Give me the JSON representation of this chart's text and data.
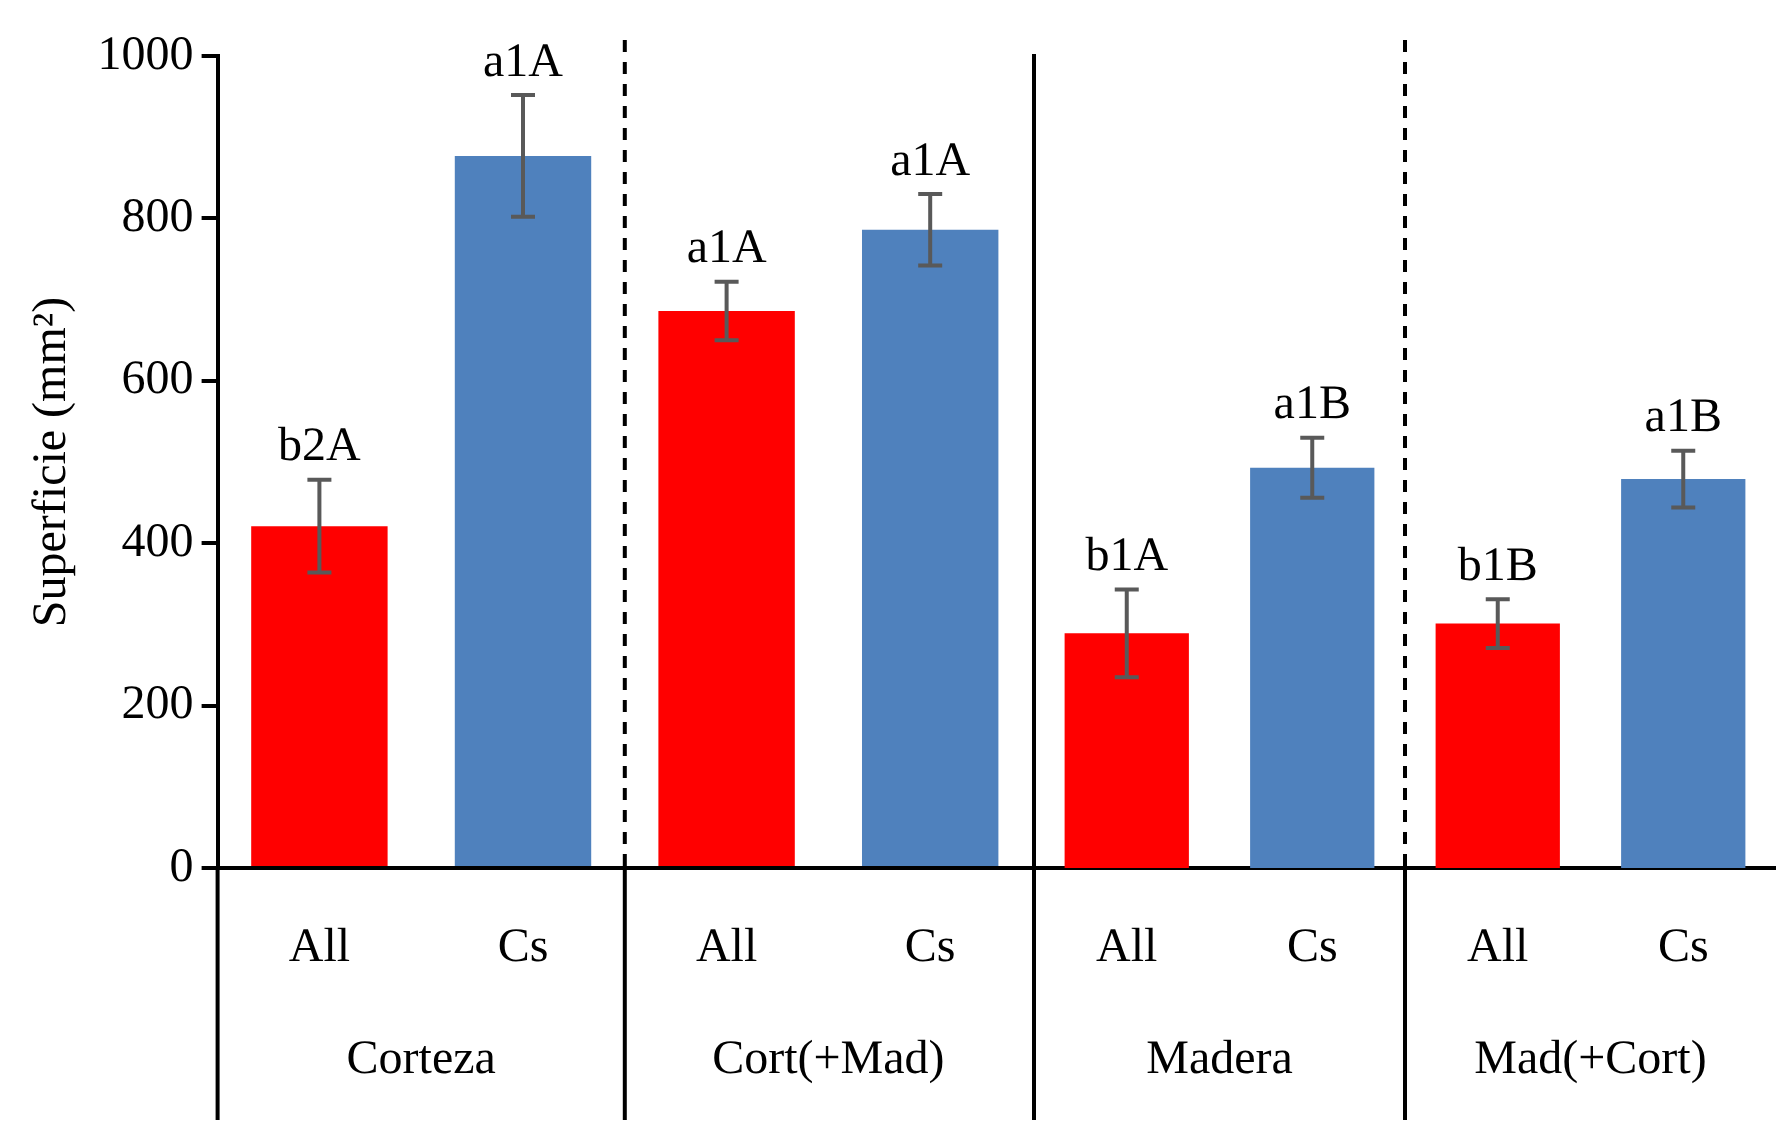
{
  "chart_data": [
    {
      "type": "bar",
      "ylabel": "Superficie (mm²)",
      "categories": [
        "Corteza",
        "Cort(+Mad)"
      ],
      "series": [
        {
          "name": "All",
          "color": "#ff0000",
          "values": [
            421,
            686
          ],
          "errors": [
            57,
            36
          ],
          "value_labels": [
            "b2A",
            "a1A"
          ]
        },
        {
          "name": "Cs",
          "color": "#4f81bd",
          "values": [
            877,
            786
          ],
          "errors": [
            75,
            44
          ],
          "value_labels": [
            "a1A",
            "a1A"
          ]
        }
      ],
      "ylim": [
        0,
        1000
      ],
      "yticks": [
        0,
        200,
        400,
        600,
        800,
        1000
      ],
      "grid": false,
      "legend": false
    },
    {
      "type": "bar",
      "categories": [
        "Madera",
        "Mad(+Cort)"
      ],
      "series": [
        {
          "name": "All",
          "color": "#ff0000",
          "values": [
            289,
            301
          ],
          "errors": [
            54,
            30
          ],
          "value_labels": [
            "b1A",
            "b1B"
          ]
        },
        {
          "name": "Cs",
          "color": "#4f81bd",
          "values": [
            493,
            479
          ],
          "errors": [
            37,
            35
          ],
          "value_labels": [
            "a1B",
            "a1B"
          ]
        }
      ],
      "ylim": [
        0,
        1000
      ],
      "yticks": [
        0,
        200,
        400,
        600,
        800,
        1000
      ],
      "grid": false,
      "legend": false,
      "tick_labels": "x"
    }
  ]
}
